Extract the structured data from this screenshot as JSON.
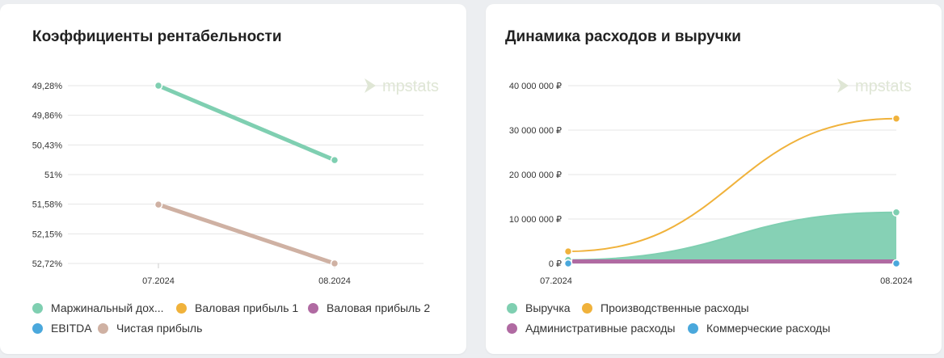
{
  "charts": [
    {
      "title": "Коэффициенты рентабельности",
      "watermark": "mpstats",
      "chart_data": {
        "type": "line",
        "categories": [
          "07.2024",
          "08.2024"
        ],
        "y_ticks": [
          "49,28%",
          "49,86%",
          "50,43%",
          "51%",
          "51,58%",
          "52,15%",
          "52,72%"
        ],
        "y_reversed": true,
        "ylim": [
          49.28,
          52.72
        ],
        "series": [
          {
            "name": "Маржинальный дох...",
            "color": "#7fcfb1",
            "values": [
              49.28,
              50.72
            ]
          },
          {
            "name": "Валовая прибыль 1",
            "color": "#f0b23b",
            "values": [
              null,
              null
            ]
          },
          {
            "name": "Валовая прибыль 2",
            "color": "#b06aa2",
            "values": [
              null,
              null
            ]
          },
          {
            "name": "EBITDA",
            "color": "#4aa8dc",
            "values": [
              null,
              null
            ]
          },
          {
            "name": "Чистая прибыль",
            "color": "#cfb1a3",
            "values": [
              51.58,
              52.72
            ]
          }
        ],
        "legend_position": "bottom"
      }
    },
    {
      "title": "Динамика расходов и выручки",
      "watermark": "mpstats",
      "chart_data": {
        "type": "area",
        "categories": [
          "07.2024",
          "08.2024"
        ],
        "y_ticks": [
          "0 ₽",
          "10 000 000 ₽",
          "20 000 000 ₽",
          "30 000 000 ₽",
          "40 000 000 ₽"
        ],
        "ylim": [
          0,
          40000000
        ],
        "series": [
          {
            "name": "Выручка",
            "color": "#7fcfb1",
            "style": "area",
            "values": [
              800000,
              11500000
            ]
          },
          {
            "name": "Производственные расходы",
            "color": "#f0b23b",
            "style": "line",
            "values": [
              2700000,
              32600000
            ]
          },
          {
            "name": "Административные расходы",
            "color": "#b06aa2",
            "style": "area",
            "values": [
              0,
              0
            ]
          },
          {
            "name": "Коммерческие расходы",
            "color": "#4aa8dc",
            "style": "line",
            "values": [
              0,
              0
            ]
          }
        ],
        "legend_position": "bottom"
      }
    }
  ]
}
